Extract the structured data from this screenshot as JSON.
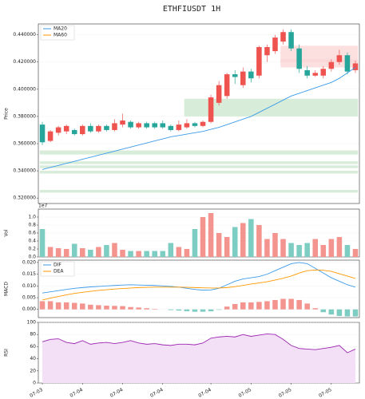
{
  "chart_data": [
    {
      "type": "candlestick",
      "title": "ETHFIUSDT  1H",
      "ylabel": "Price",
      "xlim": [
        -0.5,
        39.5
      ],
      "ylim": [
        0.316,
        0.448
      ],
      "yticks": [
        {
          "value": 0.32,
          "label": "0.320000"
        },
        {
          "value": 0.34,
          "label": "0.340000"
        },
        {
          "value": 0.36,
          "label": "0.360000"
        },
        {
          "value": 0.38,
          "label": "0.380000"
        },
        {
          "value": 0.4,
          "label": "0.400000"
        },
        {
          "value": 0.42,
          "label": "0.420000"
        },
        {
          "value": 0.44,
          "label": "0.440000"
        }
      ],
      "up_color": "#ef5350",
      "down_color": "#26a69a",
      "grid": true,
      "legend": "upper left",
      "open": [
        0.374,
        0.362,
        0.368,
        0.369,
        0.37,
        0.367,
        0.373,
        0.369,
        0.373,
        0.37,
        0.374,
        0.376,
        0.372,
        0.375,
        0.375,
        0.375,
        0.373,
        0.37,
        0.372,
        0.375,
        0.373,
        0.376,
        0.39,
        0.395,
        0.411,
        0.403,
        0.413,
        0.41,
        0.425,
        0.428,
        0.435,
        0.442,
        0.43,
        0.414,
        0.41,
        0.41,
        0.415,
        0.42,
        0.425,
        0.414
      ],
      "high": [
        0.376,
        0.37,
        0.373,
        0.374,
        0.371,
        0.374,
        0.375,
        0.374,
        0.374,
        0.378,
        0.382,
        0.377,
        0.376,
        0.376,
        0.376,
        0.377,
        0.374,
        0.377,
        0.378,
        0.376,
        0.377,
        0.396,
        0.406,
        0.412,
        0.414,
        0.416,
        0.415,
        0.432,
        0.433,
        0.44,
        0.444,
        0.444,
        0.433,
        0.417,
        0.414,
        0.417,
        0.422,
        0.429,
        0.427,
        0.421
      ],
      "low": [
        0.359,
        0.361,
        0.366,
        0.367,
        0.366,
        0.366,
        0.368,
        0.368,
        0.369,
        0.369,
        0.372,
        0.371,
        0.371,
        0.371,
        0.371,
        0.371,
        0.369,
        0.369,
        0.371,
        0.372,
        0.372,
        0.375,
        0.388,
        0.393,
        0.404,
        0.401,
        0.405,
        0.408,
        0.42,
        0.426,
        0.433,
        0.428,
        0.412,
        0.408,
        0.409,
        0.408,
        0.413,
        0.418,
        0.411,
        0.412
      ],
      "close": [
        0.361,
        0.369,
        0.372,
        0.373,
        0.367,
        0.373,
        0.369,
        0.373,
        0.37,
        0.375,
        0.377,
        0.372,
        0.375,
        0.372,
        0.372,
        0.372,
        0.37,
        0.374,
        0.375,
        0.373,
        0.376,
        0.394,
        0.403,
        0.411,
        0.409,
        0.413,
        0.408,
        0.431,
        0.431,
        0.438,
        0.442,
        0.43,
        0.415,
        0.41,
        0.412,
        0.415,
        0.42,
        0.425,
        0.413,
        0.419
      ],
      "series": [
        {
          "name": "MA20",
          "color": "#3d9be9",
          "values": [
            0.341,
            0.3425,
            0.344,
            0.3455,
            0.347,
            0.3485,
            0.35,
            0.3515,
            0.353,
            0.3545,
            0.356,
            0.3575,
            0.359,
            0.3605,
            0.362,
            0.3635,
            0.365,
            0.366,
            0.367,
            0.368,
            0.369,
            0.3705,
            0.372,
            0.374,
            0.376,
            0.378,
            0.38,
            0.383,
            0.386,
            0.389,
            0.392,
            0.395,
            0.397,
            0.399,
            0.401,
            0.403,
            0.405,
            0.408,
            0.412,
            0.416
          ]
        },
        {
          "name": "MA60",
          "color": "#ff9800"
        }
      ],
      "zones": [
        {
          "start": 0,
          "end": 39,
          "low": 0.352,
          "high": 0.355,
          "color": "#c8e6c9"
        },
        {
          "start": 0,
          "end": 39,
          "low": 0.345,
          "high": 0.347,
          "color": "#c8e6c9"
        },
        {
          "start": 0,
          "end": 39,
          "low": 0.342,
          "high": 0.344,
          "color": "#c8e6c9"
        },
        {
          "start": 0,
          "end": 39,
          "low": 0.338,
          "high": 0.34,
          "color": "#c8e6c9"
        },
        {
          "start": 0,
          "end": 39,
          "low": 0.324,
          "high": 0.326,
          "color": "#c8e6c9"
        },
        {
          "start": 18,
          "end": 39,
          "low": 0.38,
          "high": 0.393,
          "color": "#c8e6c9"
        },
        {
          "start": 30,
          "end": 39,
          "low": 0.42,
          "high": 0.432,
          "color": "#fbd3d3"
        },
        {
          "start": 30,
          "end": 39,
          "low": 0.416,
          "high": 0.422,
          "color": "#fbd3d3"
        }
      ]
    },
    {
      "type": "bar",
      "ylabel": "Vol",
      "scale_label": "1e7",
      "xlim": [
        -0.5,
        39.5
      ],
      "ylim": [
        0,
        1.2
      ],
      "yticks": [
        {
          "value": 0,
          "label": "0.0"
        },
        {
          "value": 0.2,
          "label": "0.2"
        },
        {
          "value": 0.4,
          "label": "0.4"
        },
        {
          "value": 0.6,
          "label": "0.6"
        },
        {
          "value": 0.8,
          "label": "0.8"
        },
        {
          "value": 1,
          "label": "1.0"
        }
      ],
      "values": [
        0.7,
        0.25,
        0.22,
        0.2,
        0.33,
        0.22,
        0.18,
        0.25,
        0.3,
        0.35,
        0.18,
        0.15,
        0.15,
        0.15,
        0.15,
        0.15,
        0.35,
        0.25,
        0.2,
        0.7,
        1.0,
        1.1,
        0.6,
        0.5,
        0.75,
        0.85,
        0.95,
        0.8,
        0.45,
        0.6,
        0.45,
        0.35,
        0.3,
        0.35,
        0.45,
        0.3,
        0.45,
        0.5,
        0.3,
        0.2
      ],
      "up_color": "#f4948f",
      "down_color": "#7ecdc3"
    },
    {
      "type": "macd",
      "ylabel": "MACD",
      "xlim": [
        -0.5,
        39.5
      ],
      "ylim": [
        -0.0035,
        0.021
      ],
      "legend": "upper left",
      "yticks": [
        {
          "value": 0,
          "label": "0.000"
        },
        {
          "value": 0.005,
          "label": "0.005"
        },
        {
          "value": 0.01,
          "label": "0.010"
        },
        {
          "value": 0.015,
          "label": "0.015"
        },
        {
          "value": 0.02,
          "label": "0.020"
        }
      ],
      "series": [
        {
          "name": "DIF",
          "color": "#3d9be9",
          "values": [
            0.007,
            0.0075,
            0.008,
            0.0085,
            0.009,
            0.0093,
            0.0096,
            0.0098,
            0.01,
            0.0102,
            0.0104,
            0.0105,
            0.0104,
            0.0103,
            0.0102,
            0.01,
            0.0098,
            0.0095,
            0.009,
            0.0085,
            0.0082,
            0.0083,
            0.009,
            0.0105,
            0.012,
            0.013,
            0.0135,
            0.014,
            0.015,
            0.0165,
            0.018,
            0.0195,
            0.02,
            0.0195,
            0.0175,
            0.0155,
            0.0135,
            0.012,
            0.0105,
            0.0095
          ]
        },
        {
          "name": "DEA",
          "color": "#ff9800",
          "values": [
            0.004,
            0.0048,
            0.0055,
            0.0062,
            0.0068,
            0.0073,
            0.0077,
            0.0081,
            0.0084,
            0.0087,
            0.0089,
            0.0091,
            0.0093,
            0.0094,
            0.0095,
            0.0095,
            0.0095,
            0.0095,
            0.0094,
            0.0093,
            0.0092,
            0.0091,
            0.0091,
            0.0093,
            0.0097,
            0.0102,
            0.0108,
            0.0113,
            0.0118,
            0.0125,
            0.0133,
            0.0142,
            0.0155,
            0.0165,
            0.0168,
            0.0167,
            0.0162,
            0.0152,
            0.0142,
            0.0132
          ]
        }
      ],
      "hist_values": [
        0.0035,
        0.0035,
        0.003,
        0.003,
        0.0028,
        0.0025,
        0.002,
        0.0018,
        0.0016,
        0.0015,
        0.0014,
        0.001,
        0.0008,
        0.0005,
        0.0002,
        0,
        -0.0003,
        -0.0005,
        -0.0008,
        -0.001,
        -0.001,
        -0.0008,
        -0.0002,
        0.0012,
        0.0023,
        0.003,
        0.003,
        0.0032,
        0.0035,
        0.004,
        0.0045,
        0.0045,
        0.004,
        0.0025,
        0.0005,
        -0.0012,
        -0.0022,
        -0.0028,
        -0.003,
        -0.003
      ],
      "up_color": "#f4948f",
      "down_color": "#7ecdc3"
    },
    {
      "type": "line",
      "ylabel": "RSI",
      "xlim": [
        -0.5,
        39.5
      ],
      "ylim": [
        0,
        100
      ],
      "yticks": [
        0,
        20,
        40,
        60,
        80,
        100
      ],
      "series": [
        {
          "name": "RSI",
          "color": "#9c27b0",
          "values": [
            68,
            72,
            73,
            67,
            65,
            70,
            64,
            66,
            67,
            65,
            67,
            70,
            66,
            64,
            65,
            63,
            62,
            64,
            64,
            63,
            66,
            74,
            76,
            77,
            76,
            80,
            77,
            79,
            81,
            80,
            72,
            62,
            57,
            56,
            55,
            57,
            59,
            62,
            50,
            56
          ]
        }
      ],
      "fill_color": "#f3e0f7",
      "xticks": [
        {
          "value": 0,
          "label": "07-03"
        },
        {
          "value": 5,
          "label": "07-04"
        },
        {
          "value": 10,
          "label": "07-04"
        },
        {
          "value": 15,
          "label": "07-04"
        },
        {
          "value": 21,
          "label": "07-04"
        },
        {
          "value": 26,
          "label": "07-05"
        },
        {
          "value": 31,
          "label": "07-05"
        },
        {
          "value": 36,
          "label": "07-05"
        }
      ]
    }
  ]
}
